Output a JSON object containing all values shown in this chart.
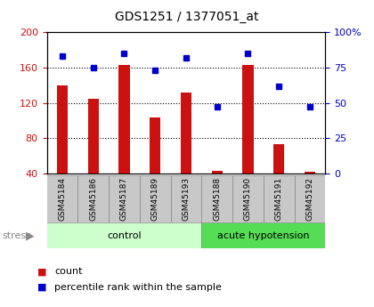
{
  "title": "GDS1251 / 1377051_at",
  "samples": [
    "GSM45184",
    "GSM45186",
    "GSM45187",
    "GSM45189",
    "GSM45193",
    "GSM45188",
    "GSM45190",
    "GSM45191",
    "GSM45192"
  ],
  "count_values": [
    140,
    125,
    163,
    103,
    132,
    43,
    163,
    73,
    42
  ],
  "percentile_values": [
    83,
    75,
    85,
    73,
    82,
    47,
    85,
    62,
    47
  ],
  "groups": [
    {
      "label": "control",
      "start": 0,
      "end": 5,
      "color": "#ccffcc"
    },
    {
      "label": "acute hypotension",
      "start": 5,
      "end": 9,
      "color": "#55dd55"
    }
  ],
  "bar_color": "#cc1111",
  "dot_color": "#0000cc",
  "ylim_left": [
    40,
    200
  ],
  "ylim_right": [
    0,
    100
  ],
  "yticks_left": [
    40,
    80,
    120,
    160,
    200
  ],
  "yticks_right": [
    0,
    25,
    50,
    75,
    100
  ],
  "stress_label": "stress",
  "bar_width": 0.35
}
